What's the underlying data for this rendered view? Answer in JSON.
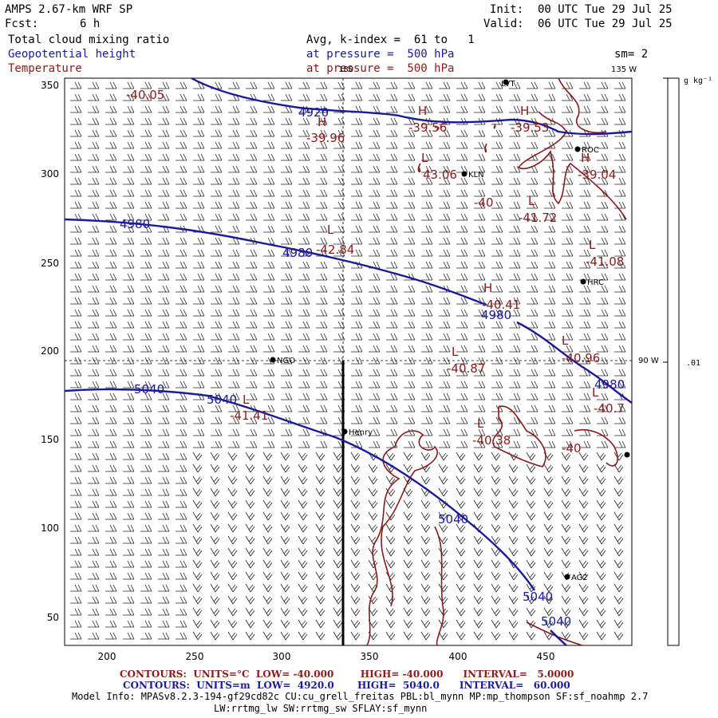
{
  "header": {
    "model_title": "AMPS 2.67-km WRF SP",
    "forecast_label": "Fcst:",
    "forecast_value": "6 h",
    "init_label": "Init:",
    "init_value": "00 UTC Tue 29 Jul 25",
    "valid_label": "Valid:",
    "valid_value": "06 UTC Tue 29 Jul 25",
    "field1": "Total cloud mixing ratio",
    "field2": "Geopotential height",
    "field3": "Temperature",
    "avg_line": "Avg, k-index =  61 to   1",
    "pressure_line_1": "at pressure =  500 hPa",
    "pressure_line_2": "at pressure =  500 hPa",
    "smoothing": "sm= 2"
  },
  "map": {
    "x_ticks": [
      "200",
      "250",
      "300",
      "350",
      "400",
      "450"
    ],
    "y_ticks": [
      "350",
      "300",
      "250",
      "200",
      "150",
      "100",
      "50"
    ],
    "meridian_labels": {
      "top": "180",
      "top_right": "135 W",
      "right": "90 W"
    },
    "colorbar_unit": "g kg⁻¹",
    "colorbar_value": ".01",
    "stations": [
      "LVT",
      "ROC",
      "KLN",
      "HRC",
      "NGO",
      "Henry",
      "AG2"
    ],
    "height_contour_labels": [
      "4920",
      "4980",
      "4980",
      "4980",
      "4980",
      "5040",
      "5040",
      "5040",
      "5040",
      "5040"
    ],
    "temperature_labels": [
      {
        "symbol": "",
        "value": "-40.05"
      },
      {
        "symbol": "H",
        "value": "-39.96"
      },
      {
        "symbol": "H",
        "value": "-39.56"
      },
      {
        "symbol": "H",
        "value": "-39.53"
      },
      {
        "symbol": "L",
        "value": "43.06"
      },
      {
        "symbol": "H",
        "value": "-39.04"
      },
      {
        "symbol": "L",
        "value": "-41.72"
      },
      {
        "symbol": "L",
        "value": "-42.84"
      },
      {
        "symbol": "L",
        "value": "-41.08"
      },
      {
        "symbol": "H",
        "value": "-40.41"
      },
      {
        "symbol": "L",
        "value": "-40.87"
      },
      {
        "symbol": "L",
        "value": "-40.96"
      },
      {
        "symbol": "L",
        "value": "-40.7"
      },
      {
        "symbol": "L",
        "value": "-40.38"
      },
      {
        "symbol": "",
        "value": "-40"
      },
      {
        "symbol": "",
        "value": "-40"
      },
      {
        "symbol": "L",
        "value": "-41.41"
      }
    ]
  },
  "footer": {
    "line1": "CONTOURS:  UNITS=°C  LOW= -40.000        HIGH= -40.000      INTERVAL=   5.0000",
    "line2": "CONTOURS:  UNITS=m  LOW=  4920.0       HIGH=  5040.0      INTERVAL=   60.000",
    "model_info": "Model Info: MPASv8.2.3-194-gf29cd82c CU:cu_grell_freitas PBL:bl_mynn MP:mp_thompson SF:sf_noahmp 2.7",
    "model_info2": "LW:rrtmg_lw SW:rrtmg_sw SFLAY:sf_mynn"
  },
  "colors": {
    "height": "#1a1a9c",
    "temperature": "#8b1a1a",
    "barbs": "#222222"
  }
}
